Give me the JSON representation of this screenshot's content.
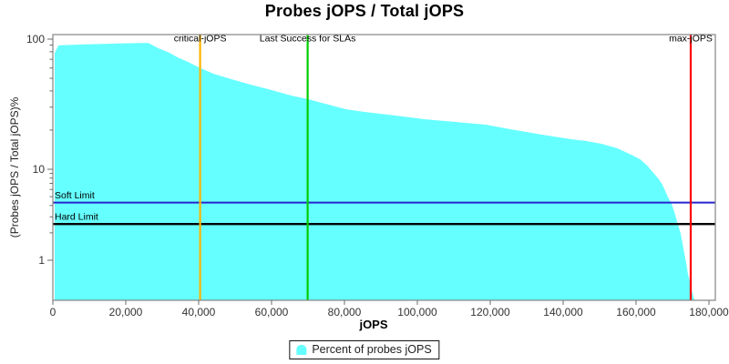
{
  "title": "Probes jOPS / Total jOPS",
  "legend": {
    "label": "Percent of probes jOPS",
    "swatch_color": "#66FFFF"
  },
  "axes": {
    "x": {
      "title": "jOPS",
      "scale": "linear",
      "min": 0,
      "max": 181500,
      "major_tick_values": [
        0,
        20000,
        40000,
        60000,
        80000,
        100000,
        120000,
        140000,
        160000,
        180000
      ],
      "major_tick_labels": [
        "0",
        "20,000",
        "40,000",
        "60,000",
        "80,000",
        "100,000",
        "120,000",
        "140,000",
        "160,000",
        "180,000"
      ]
    },
    "y": {
      "title": "(Probes jOPS / Total jOPS)%",
      "scale": "log",
      "min": 0.37,
      "max": 110,
      "major_tick_values": [
        100,
        10,
        1
      ],
      "major_tick_labels": [
        "100",
        "10",
        "1"
      ],
      "minor_tick_values": [
        90,
        80,
        70,
        60,
        50,
        40,
        30,
        20,
        9,
        8,
        7,
        6,
        5,
        4,
        3,
        2
      ]
    }
  },
  "markers": {
    "vertical": [
      {
        "name": "critical-jops",
        "label": "critical-jOPS",
        "jops": 40400,
        "color": "#FFB400"
      },
      {
        "name": "last-success-for-slas",
        "label": "Last Success for SLAs",
        "jops": 69900,
        "color": "#00CE00"
      },
      {
        "name": "max-jops",
        "label": "max-jOPS",
        "jops": 175000,
        "color": "#FB0000"
      }
    ],
    "horizontal": [
      {
        "name": "soft-limit",
        "label": "Soft Limit",
        "percent": 4.3,
        "color": "#2525CE"
      },
      {
        "name": "hard-limit",
        "label": "Hard Limit",
        "percent": 2.5,
        "color": "#000000"
      }
    ]
  },
  "chart_data": {
    "type": "area",
    "series_name": "Percent of probes jOPS",
    "fill_color": "#66FFFF",
    "x_name": "jOPS",
    "y_name": "(Probes jOPS / Total jOPS)%",
    "xlim": [
      0,
      181500
    ],
    "ylim": [
      0.37,
      110
    ],
    "y_scale": "log",
    "grid": false,
    "legend_position": "bottom-center",
    "points": [
      [
        500,
        78
      ],
      [
        1500,
        89.5
      ],
      [
        8000,
        91
      ],
      [
        24000,
        93.5
      ],
      [
        26200,
        93.5
      ],
      [
        29000,
        85
      ],
      [
        32000,
        78.5
      ],
      [
        34200,
        72.5
      ],
      [
        37000,
        67
      ],
      [
        40400,
        60
      ],
      [
        44200,
        54
      ],
      [
        49200,
        49
      ],
      [
        54200,
        44.7
      ],
      [
        59200,
        41.2
      ],
      [
        65500,
        36.8
      ],
      [
        69900,
        34.6
      ],
      [
        75500,
        31.4
      ],
      [
        80500,
        28.9
      ],
      [
        85500,
        27.6
      ],
      [
        93800,
        25.9
      ],
      [
        102200,
        24.2
      ],
      [
        110500,
        23.1
      ],
      [
        118800,
        22.0
      ],
      [
        125500,
        20.3
      ],
      [
        133800,
        18.5
      ],
      [
        142200,
        17.0
      ],
      [
        146200,
        16.5
      ],
      [
        150500,
        15.7
      ],
      [
        154800,
        14.5
      ],
      [
        158800,
        12.9
      ],
      [
        161200,
        11.9
      ],
      [
        163000,
        10.7
      ],
      [
        164800,
        9.1
      ],
      [
        166200,
        7.8
      ],
      [
        167200,
        6.8
      ],
      [
        168800,
        4.9
      ],
      [
        169800,
        4.1
      ],
      [
        170500,
        3.4
      ],
      [
        171200,
        2.7
      ],
      [
        172200,
        2.0
      ],
      [
        173000,
        1.35
      ],
      [
        173800,
        0.91
      ],
      [
        174200,
        0.72
      ],
      [
        174800,
        0.57
      ],
      [
        175500,
        0.43
      ],
      [
        176000,
        0.37
      ]
    ]
  }
}
